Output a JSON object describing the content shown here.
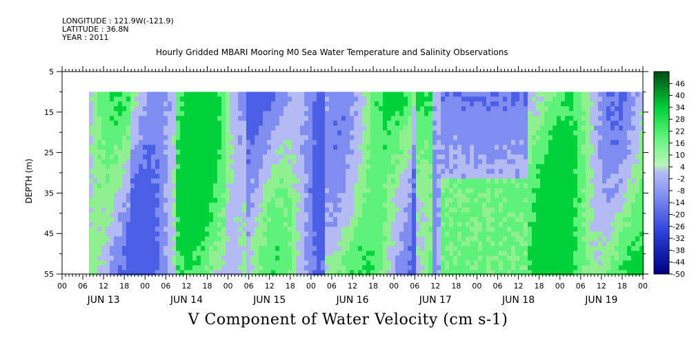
{
  "header": {
    "longitude": "LONGITUDE : 121.9W(-121.9)",
    "latitude": "LATITUDE : 36.8N",
    "year": "YEAR : 2011"
  },
  "chart_data": {
    "type": "heatmap",
    "title": "Hourly Gridded MBARI Mooring M0 Sea Water Temperature and Salinity Observations",
    "xlabel": "V Component of Water Velocity (cm s-1)",
    "ylabel": "DEPTH (m)",
    "y_ticks": [
      5,
      15,
      25,
      35,
      45,
      55
    ],
    "ylim": [
      5,
      55
    ],
    "y_inverted": true,
    "x_hour_labels": [
      "00",
      "06",
      "12",
      "18",
      "00",
      "06",
      "12",
      "18",
      "00",
      "06",
      "12",
      "18",
      "00",
      "06",
      "12",
      "18",
      "00",
      "06",
      "12",
      "18",
      "00",
      "06",
      "12",
      "18",
      "00",
      "06",
      "12",
      "18",
      "00"
    ],
    "x_day_labels": [
      "JUN 13",
      "JUN 14",
      "JUN 15",
      "JUN 16",
      "JUN 17",
      "JUN 18",
      "JUN 19"
    ],
    "data_depth_range": [
      10,
      55
    ],
    "colorbar": {
      "ticks": [
        "46",
        "40",
        "34",
        "28",
        "22",
        "16",
        "10",
        "4",
        "-2",
        "-8",
        "-14",
        "-20",
        "-26",
        "-32",
        "-38",
        "-44",
        "-50"
      ],
      "range": [
        -50,
        52
      ]
    },
    "colors": {
      "strong_negative": "#000080",
      "negative": "#7f8cf0",
      "near_zero": "#b4baf4",
      "positive": "#90f090",
      "strong_positive": "#00d23a",
      "max_positive": "#004a12"
    }
  }
}
